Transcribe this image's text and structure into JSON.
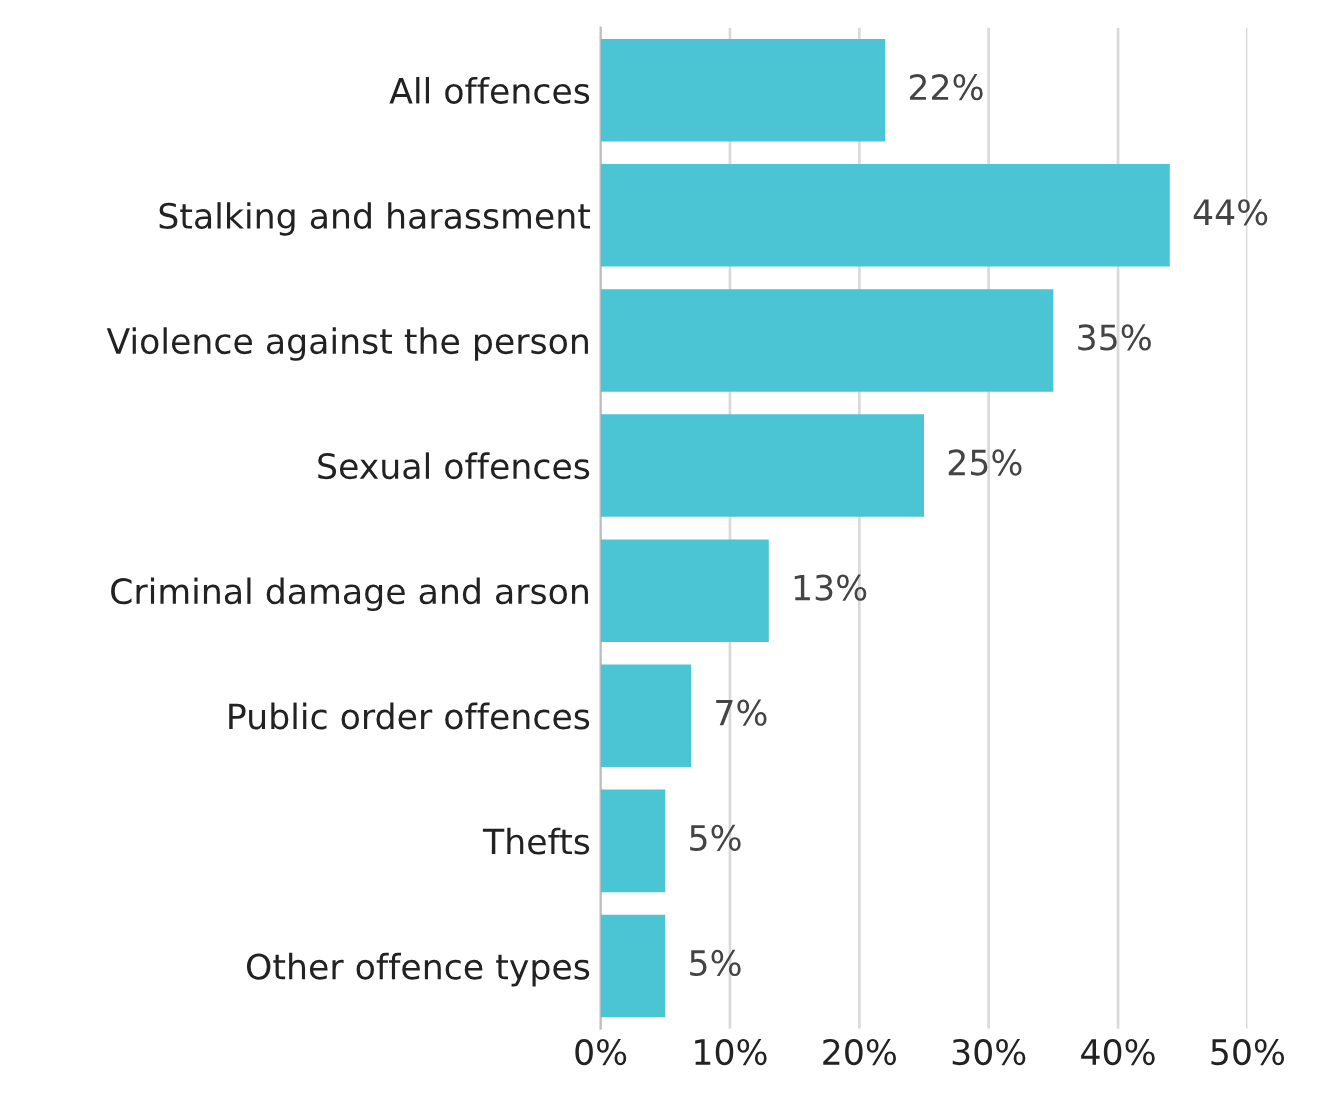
{
  "chart_data": {
    "type": "bar",
    "orientation": "horizontal",
    "categories": [
      "All offences",
      "Stalking and harassment",
      "Violence against the person",
      "Sexual offences",
      "Criminal damage and arson",
      "Public order offences",
      "Thefts",
      "Other offence types"
    ],
    "values": [
      22,
      44,
      35,
      25,
      13,
      7,
      5,
      5
    ],
    "value_labels": [
      "22%",
      "44%",
      "35%",
      "25%",
      "13%",
      "7%",
      "5%",
      "5%"
    ],
    "color": "#4bc5d3",
    "xlim": [
      0,
      50
    ],
    "xticks": [
      {
        "value": 0,
        "label": "0%"
      },
      {
        "value": 10,
        "label": "10%"
      },
      {
        "value": 20,
        "label": "20%"
      },
      {
        "value": 30,
        "label": "30%"
      },
      {
        "value": 40,
        "label": "40%"
      },
      {
        "value": 50,
        "label": "50%"
      }
    ],
    "grid": "x"
  }
}
